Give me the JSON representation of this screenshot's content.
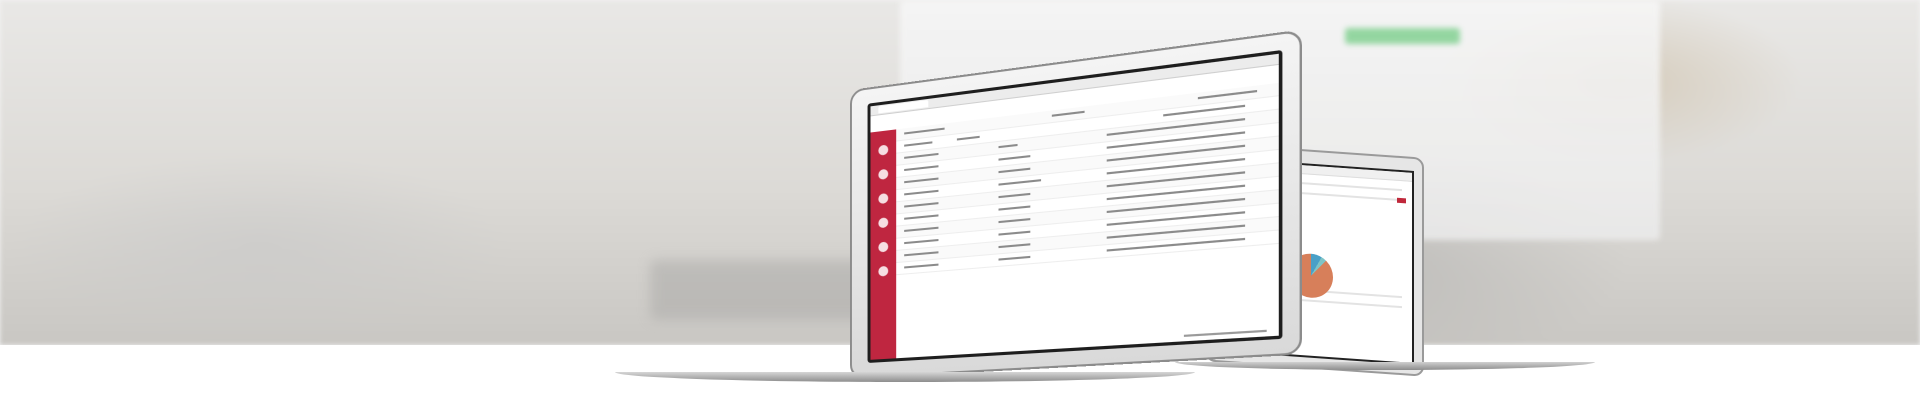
{
  "scene": {
    "subject": "",
    "colors": {
      "sidebar_red": "#bf2640",
      "chart_orange": "#d77f5a",
      "chart_blue": "#4aa0c7",
      "chart_teal": "#7ec4c6",
      "bg_green": "#7ccf8c"
    },
    "icons": [
      "laptop-icon"
    ]
  }
}
